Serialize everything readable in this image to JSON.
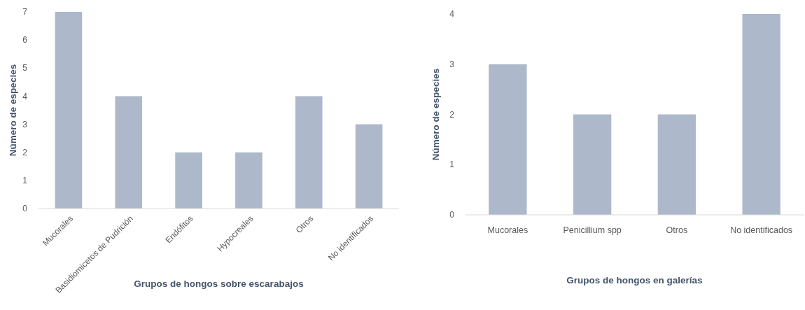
{
  "chart_data": [
    {
      "type": "bar",
      "xlabel": "Grupos de hongos sobre escarabajos",
      "ylabel": "Número de especies",
      "categories": [
        "Mucorales",
        "Basidiomicetos de Pudrición",
        "Endófitos",
        "Hypocreales",
        "Otros",
        "No identificados"
      ],
      "values": [
        7,
        4,
        2,
        2,
        4,
        3
      ],
      "color": "#adb9ca",
      "ylim": [
        0,
        7
      ],
      "yticks": [
        0,
        1,
        2,
        3,
        4,
        5,
        6,
        7
      ],
      "grid": false
    },
    {
      "type": "bar",
      "xlabel": "Grupos de hongos en galerías",
      "ylabel": "Número de especies",
      "categories": [
        "Mucorales",
        "Penicillium spp",
        "Otros",
        "No identificados"
      ],
      "values": [
        3,
        2,
        2,
        4
      ],
      "color": "#adb9ca",
      "ylim": [
        0,
        4
      ],
      "yticks": [
        0,
        1,
        2,
        3,
        4
      ],
      "grid": false
    }
  ]
}
